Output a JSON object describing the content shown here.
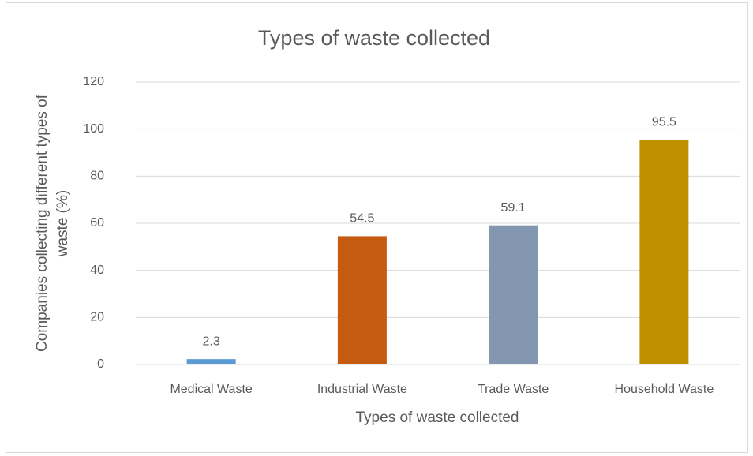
{
  "chart_data": {
    "type": "bar",
    "title": "Types of waste collected",
    "xlabel": "Types of waste collected",
    "ylabel": [
      "Companies collecting different types of",
      "waste (%)"
    ],
    "categories": [
      "Medical Waste",
      "Industrial Waste",
      "Trade Waste",
      "Household Waste"
    ],
    "values": [
      2.3,
      54.5,
      59.1,
      95.5
    ],
    "colors": [
      "#5b9bd5",
      "#c55a11",
      "#8497b0",
      "#bf9000"
    ],
    "ylim": [
      0,
      120
    ],
    "yticks": [
      0,
      20,
      40,
      60,
      80,
      100,
      120
    ],
    "grid": true,
    "data_labels": true
  }
}
